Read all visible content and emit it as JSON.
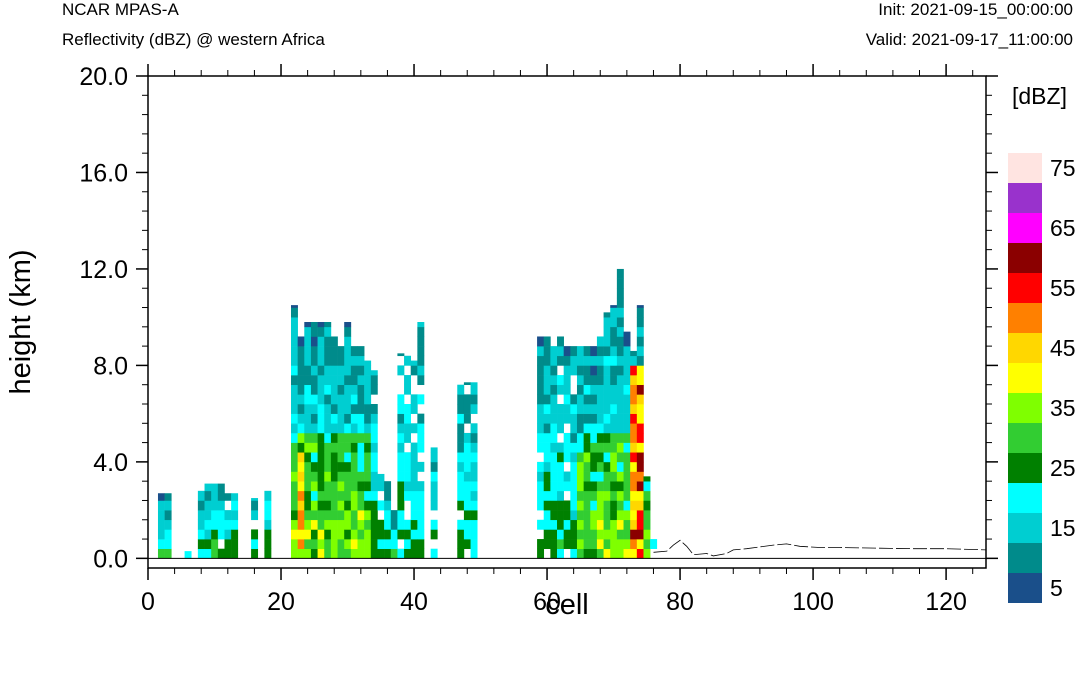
{
  "header": {
    "title_left": "NCAR MPAS-A",
    "subtitle_left": "Reflectivity (dBZ) @ western Africa",
    "init": "Init: 2021-09-15_00:00:00",
    "valid": "Valid: 2021-09-17_11:00:00"
  },
  "chart_data": {
    "type": "heatmap",
    "xlabel": "cell",
    "ylabel": "height (km)",
    "xlim": [
      0,
      126
    ],
    "ylim": [
      -0.4,
      20.0
    ],
    "x_ticks": [
      0,
      20,
      40,
      60,
      80,
      100,
      120
    ],
    "x_tick_labels": [
      "0",
      "20",
      "40",
      "60",
      "80",
      "100",
      "120"
    ],
    "y_ticks": [
      0,
      4,
      8,
      12,
      16,
      20
    ],
    "y_tick_labels": [
      "0.0",
      "4.0",
      "8.0",
      "12.0",
      "16.0",
      "20.0"
    ],
    "colorbar": {
      "unit_label": "[dBZ]",
      "levels": [
        5,
        10,
        15,
        20,
        25,
        30,
        35,
        40,
        45,
        50,
        55,
        60,
        65,
        70,
        75
      ],
      "colors": [
        "#1a4f8a",
        "#008b8b",
        "#00ced1",
        "#00ffff",
        "#008000",
        "#32cd32",
        "#7fff00",
        "#ffff00",
        "#ffd700",
        "#ff8000",
        "#ff0000",
        "#8b0000",
        "#ff00ff",
        "#9932cc",
        "#ffe4e1"
      ],
      "labels": [
        "5",
        "15",
        "25",
        "35",
        "45",
        "55",
        "65",
        "75"
      ]
    },
    "column_tops": [
      [
        2,
        2.7
      ],
      [
        3,
        2.7
      ],
      [
        5,
        0.3
      ],
      [
        6,
        0.3
      ],
      [
        8,
        3.1
      ],
      [
        9,
        3.1
      ],
      [
        10,
        3.1
      ],
      [
        11,
        3.1
      ],
      [
        12,
        2.7
      ],
      [
        13,
        2.7
      ],
      [
        16,
        2.5
      ],
      [
        18,
        3.1
      ],
      [
        22,
        10.5
      ],
      [
        23,
        9.2
      ],
      [
        24,
        9.8
      ],
      [
        25,
        9.8
      ],
      [
        26,
        9.8
      ],
      [
        27,
        9.8
      ],
      [
        28,
        9.2
      ],
      [
        29,
        8.8
      ],
      [
        30,
        9.8
      ],
      [
        31,
        8.8
      ],
      [
        32,
        8.8
      ],
      [
        33,
        8.2
      ],
      [
        34,
        7.8
      ],
      [
        35,
        3.5
      ],
      [
        36,
        3.3
      ],
      [
        37,
        2.0
      ],
      [
        38,
        8.5
      ],
      [
        39,
        8.5
      ],
      [
        40,
        8.2
      ],
      [
        41,
        9.8
      ],
      [
        43,
        4.6
      ],
      [
        47,
        7.5
      ],
      [
        48,
        7.3
      ],
      [
        49,
        7.3
      ],
      [
        59,
        9.2
      ],
      [
        60,
        9.2
      ],
      [
        61,
        8.8
      ],
      [
        62,
        9.2
      ],
      [
        63,
        8.8
      ],
      [
        64,
        8.8
      ],
      [
        65,
        8.8
      ],
      [
        66,
        8.8
      ],
      [
        67,
        8.8
      ],
      [
        68,
        9.2
      ],
      [
        69,
        10.2
      ],
      [
        70,
        10.5
      ],
      [
        71,
        12.0
      ],
      [
        72,
        9.4
      ],
      [
        73,
        8.6
      ],
      [
        74,
        10.5
      ],
      [
        75,
        3.4
      ],
      [
        76,
        0.8
      ]
    ],
    "terrain_line": [
      [
        76,
        0.25
      ],
      [
        78,
        0.3
      ],
      [
        79,
        0.55
      ],
      [
        80,
        0.75
      ],
      [
        81,
        0.5
      ],
      [
        82,
        0.15
      ],
      [
        84,
        0.2
      ],
      [
        85,
        0.1
      ],
      [
        87,
        0.2
      ],
      [
        88,
        0.35
      ],
      [
        90,
        0.4
      ],
      [
        94,
        0.55
      ],
      [
        96,
        0.6
      ],
      [
        98,
        0.5
      ],
      [
        101,
        0.45
      ],
      [
        104,
        0.45
      ],
      [
        110,
        0.42
      ],
      [
        115,
        0.4
      ],
      [
        120,
        0.4
      ],
      [
        126,
        0.35
      ]
    ]
  }
}
